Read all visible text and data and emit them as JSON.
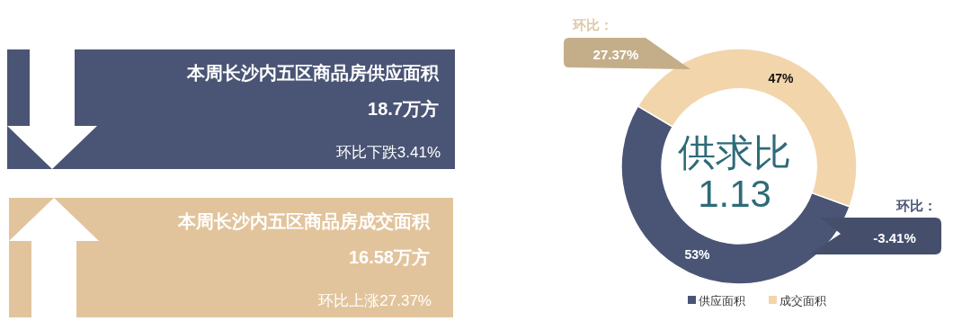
{
  "chart_data": [
    {
      "type": "other",
      "colors": [
        "#4a5575",
        "#e2c49c"
      ],
      "annotations": [
        "本周长沙内五区商品房供应面积",
        "18.7万方",
        "环比下跌3.41%",
        "本周长沙内五区商品房成交面积",
        "16.58万方",
        "环比上涨27.37%"
      ]
    },
    {
      "type": "donut",
      "categories": [
        "供应面积",
        "成交面积"
      ],
      "values": [
        53,
        47
      ],
      "colors": [
        "#4a5575",
        "#f2d5aa"
      ],
      "value_labels": [
        "53%",
        "47%"
      ],
      "legend": "bottom",
      "annotations": [
        "供求比",
        "1.13",
        "环比：",
        "-3.41%",
        "环比：",
        "27.37%"
      ]
    }
  ]
}
